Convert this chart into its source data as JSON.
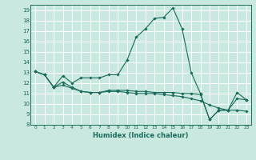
{
  "title": "",
  "xlabel": "Humidex (Indice chaleur)",
  "ylabel": "",
  "bg_color": "#c8e8e0",
  "grid_color": "#ffffff",
  "line_color": "#1a6b5a",
  "xlim": [
    -0.5,
    23.5
  ],
  "ylim": [
    8,
    19.5
  ],
  "xticks": [
    0,
    1,
    2,
    3,
    4,
    5,
    6,
    7,
    8,
    9,
    10,
    11,
    12,
    13,
    14,
    15,
    16,
    17,
    18,
    19,
    20,
    21,
    22,
    23
  ],
  "yticks": [
    8,
    9,
    10,
    11,
    12,
    13,
    14,
    15,
    16,
    17,
    18,
    19
  ],
  "series": [
    [
      13.1,
      12.8,
      11.6,
      12.7,
      12.0,
      12.5,
      12.5,
      12.5,
      12.8,
      12.8,
      14.2,
      16.4,
      17.2,
      18.2,
      18.3,
      19.2,
      17.2,
      13.0,
      11.0,
      8.5,
      9.4,
      9.4,
      11.1,
      10.4
    ],
    [
      13.1,
      12.8,
      11.6,
      12.1,
      11.6,
      11.2,
      11.1,
      11.1,
      11.3,
      11.3,
      11.3,
      11.2,
      11.2,
      11.1,
      11.1,
      11.1,
      11.0,
      11.0,
      10.9,
      8.5,
      9.4,
      9.4,
      10.5,
      10.4
    ],
    [
      13.1,
      12.8,
      11.6,
      11.8,
      11.5,
      11.2,
      11.1,
      11.1,
      11.2,
      11.2,
      11.1,
      11.0,
      11.0,
      11.0,
      10.9,
      10.8,
      10.7,
      10.5,
      10.3,
      9.9,
      9.6,
      9.4,
      9.4,
      9.3
    ]
  ]
}
